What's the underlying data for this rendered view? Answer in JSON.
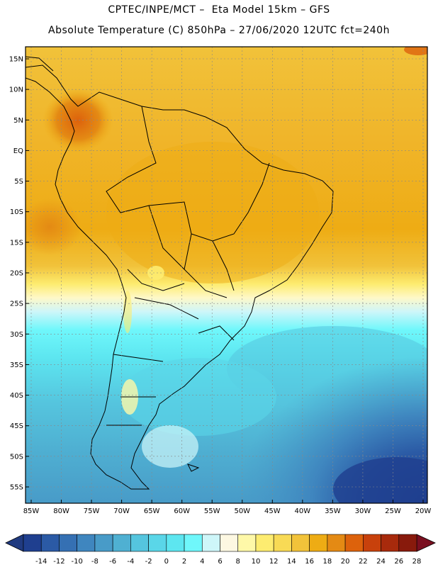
{
  "title": {
    "line1": "CPTEC/INPE/MCT –  Eta Model 15km – GFS",
    "line2": "Absolute Temperature (C) 850hPa – 27/06/2020 12UTC fct=240h"
  },
  "lat_labels": [
    "15N",
    "10N",
    "5N",
    "EQ",
    "5S",
    "10S",
    "15S",
    "20S",
    "25S",
    "30S",
    "35S",
    "40S",
    "45S",
    "50S",
    "55S"
  ],
  "lat_values": [
    15,
    10,
    5,
    0,
    -5,
    -10,
    -15,
    -20,
    -25,
    -30,
    -35,
    -40,
    -45,
    -50,
    -55
  ],
  "lon_labels": [
    "85W",
    "80W",
    "75W",
    "70W",
    "65W",
    "60W",
    "55W",
    "50W",
    "45W",
    "40W",
    "35W",
    "30W",
    "25W",
    "20W"
  ],
  "lon_values": [
    -85,
    -80,
    -75,
    -70,
    -65,
    -60,
    -55,
    -50,
    -45,
    -40,
    -35,
    -30,
    -25,
    -20
  ],
  "colorbar": {
    "labels": [
      "-14",
      "-12",
      "-10",
      "-8",
      "-6",
      "-4",
      "-2",
      "0",
      "2",
      "4",
      "6",
      "8",
      "10",
      "12",
      "14",
      "16",
      "18",
      "20",
      "22",
      "24",
      "26",
      "28"
    ],
    "colors": [
      "#1f3f8f",
      "#2b5aa5",
      "#3570b3",
      "#3f86bf",
      "#489bc8",
      "#4fb0d2",
      "#55c5de",
      "#5ad6e8",
      "#5de6f0",
      "#6ff7fb",
      "#cef6f9",
      "#fdf8e2",
      "#fef8a8",
      "#fdec70",
      "#f8da55",
      "#f2c33a",
      "#eeac14",
      "#e48a14",
      "#dd620c",
      "#c8410c",
      "#a82a0c",
      "#881a0c"
    ],
    "left_arrow_color": "#203a80",
    "right_arrow_color": "#7a0f20"
  }
}
